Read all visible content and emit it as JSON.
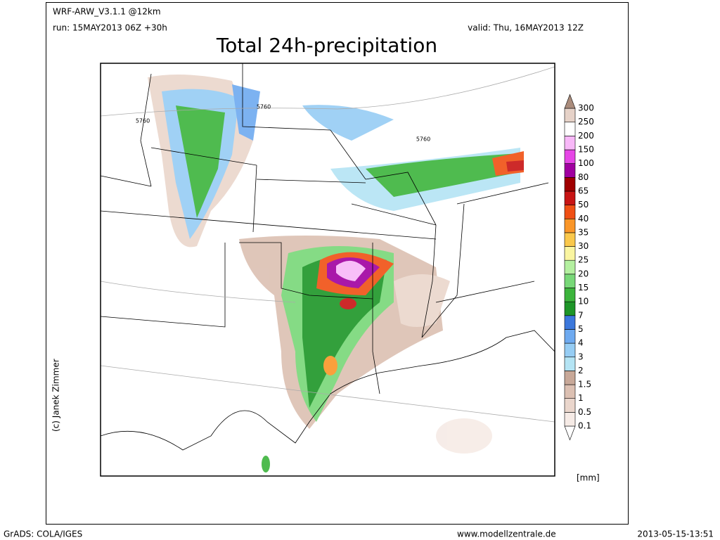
{
  "header": {
    "model": "WRF-ARW_V3.1.1 @12km",
    "run": "run: 15MAY2013 06Z +30h",
    "valid": "valid: Thu, 16MAY2013 12Z",
    "title": "Total 24h-precipitation"
  },
  "map": {
    "contour_labels": [
      "5760",
      "5760",
      "5760"
    ],
    "credit": "(c) Janek Zimmer"
  },
  "colorbar": {
    "labels": [
      "0.1",
      "0.5",
      "1",
      "1.5",
      "2",
      "3",
      "4",
      "5",
      "7",
      "10",
      "15",
      "20",
      "25",
      "30",
      "35",
      "40",
      "50",
      "65",
      "80",
      "100",
      "150",
      "200",
      "250",
      "300"
    ],
    "colors": [
      "#ffffff",
      "#f6ebe6",
      "#ead6cc",
      "#dcc0b2",
      "#c8a898",
      "#b4e4f4",
      "#96cdf4",
      "#6eaaf0",
      "#3c78dc",
      "#1e9628",
      "#3cb43c",
      "#78d878",
      "#b4f0a0",
      "#faf5a0",
      "#fac84b",
      "#fa9628",
      "#f05014",
      "#c81414",
      "#a00000",
      "#a000a0",
      "#e646e6",
      "#f8b8f8",
      "#ffffff",
      "#e6d2c8",
      "#aa8c7c"
    ],
    "unit": "[mm]"
  },
  "footer": {
    "left": "GrADS: COLA/IGES",
    "center": "www.modellzentrale.de",
    "right": "2013-05-15-13:51"
  }
}
